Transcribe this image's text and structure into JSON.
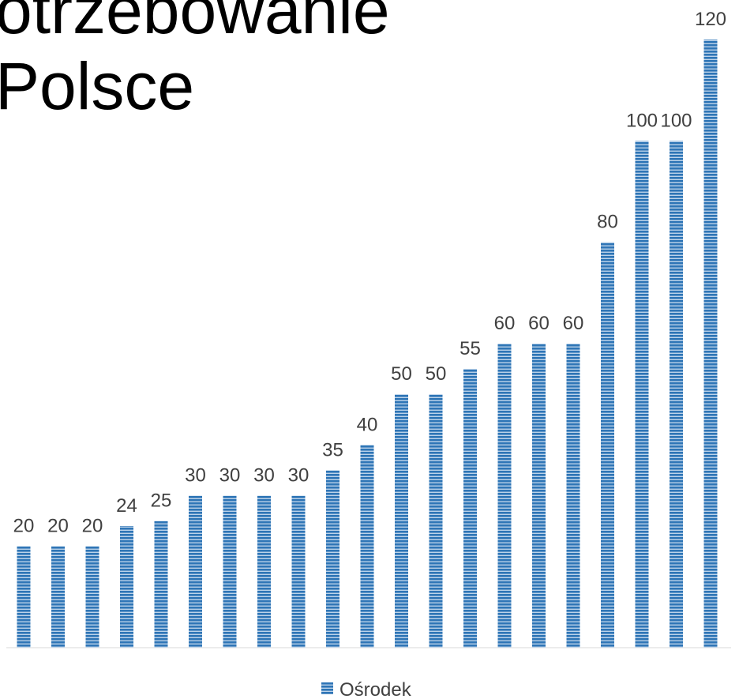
{
  "chart_data": {
    "type": "bar",
    "title": [
      "otrzebowanie",
      "Polsce"
    ],
    "series": [
      {
        "name": "Ośrodek",
        "color": "#2e75b6",
        "values": [
          20,
          20,
          20,
          24,
          25,
          30,
          30,
          30,
          30,
          35,
          40,
          50,
          50,
          55,
          60,
          60,
          60,
          80,
          100,
          100,
          120
        ]
      }
    ],
    "ylim": [
      0,
      120
    ]
  }
}
